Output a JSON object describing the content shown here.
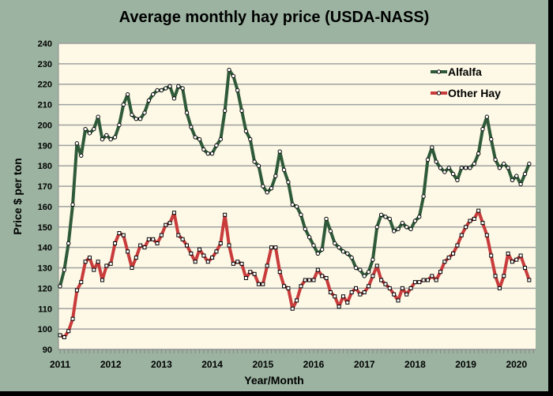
{
  "chart_data": {
    "type": "line",
    "title": "Average monthly hay price (USDA-NASS)",
    "xlabel": "Year/Month",
    "ylabel": "Price $ per ton",
    "ylim": [
      90,
      240
    ],
    "yticks": [
      90,
      100,
      110,
      120,
      130,
      140,
      150,
      160,
      170,
      180,
      190,
      200,
      210,
      220,
      230,
      240
    ],
    "xtick_labels": [
      "2011",
      "2012",
      "2013",
      "2014",
      "2015",
      "2016",
      "2017",
      "2018",
      "2019",
      "2020"
    ],
    "x_start": "2011-01",
    "x_interval": "month",
    "grid": true,
    "legend_position": "top-right",
    "series": [
      {
        "name": "Alfalfa",
        "color": "#2f5a3a",
        "values": [
          121,
          129,
          142,
          161,
          191,
          185,
          198,
          196,
          198,
          204,
          193,
          195,
          193,
          194,
          200,
          210,
          215,
          205,
          203,
          203,
          206,
          212,
          215,
          217,
          217,
          218,
          219,
          213,
          219,
          218,
          206,
          199,
          194,
          193,
          188,
          186,
          186,
          190,
          193,
          207,
          227,
          224,
          217,
          207,
          197,
          193,
          182,
          180,
          170,
          167,
          169,
          175,
          187,
          178,
          172,
          161,
          160,
          156,
          149,
          145,
          141,
          137,
          139,
          154,
          148,
          142,
          140,
          138,
          137,
          135,
          130,
          129,
          126,
          128,
          134,
          150,
          156,
          155,
          154,
          148,
          149,
          152,
          150,
          149,
          153,
          155,
          165,
          183,
          189,
          182,
          179,
          177,
          179,
          176,
          173,
          179,
          179,
          179,
          181,
          186,
          198,
          204,
          193,
          183,
          179,
          181,
          179,
          173,
          175,
          171,
          176,
          181
        ]
      },
      {
        "name": "Other Hay",
        "color": "#c83c3c",
        "values": [
          97,
          96,
          99,
          105,
          119,
          123,
          133,
          135,
          129,
          133,
          124,
          131,
          132,
          142,
          147,
          146,
          138,
          130,
          135,
          141,
          140,
          144,
          144,
          142,
          146,
          151,
          152,
          157,
          146,
          144,
          141,
          137,
          133,
          139,
          136,
          133,
          135,
          138,
          142,
          156,
          141,
          132,
          133,
          132,
          125,
          128,
          127,
          122,
          122,
          131,
          140,
          140,
          128,
          121,
          120,
          110,
          114,
          121,
          124,
          124,
          124,
          129,
          126,
          125,
          118,
          116,
          111,
          116,
          113,
          118,
          120,
          117,
          118,
          121,
          126,
          131,
          124,
          122,
          120,
          117,
          114,
          120,
          117,
          120,
          123,
          123,
          124,
          124,
          126,
          124,
          128,
          133,
          135,
          137,
          141,
          146,
          150,
          153,
          154,
          158,
          152,
          146,
          136,
          126,
          120,
          126,
          137,
          133,
          134,
          136,
          130,
          124
        ]
      }
    ]
  }
}
